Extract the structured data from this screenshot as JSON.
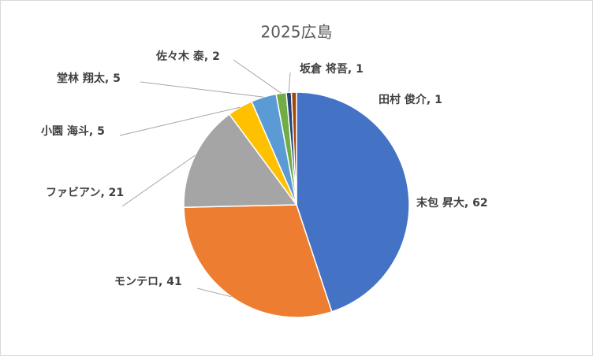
{
  "chart_data": {
    "type": "pie",
    "title": "2025広島",
    "categories": [
      "末包 昇大",
      "モンテロ",
      "ファビアン",
      "小園 海斗",
      "堂林 翔太",
      "佐々木 泰",
      "坂倉 将吾",
      "田村 俊介"
    ],
    "values": [
      62,
      41,
      21,
      5,
      5,
      2,
      1,
      1
    ],
    "colors": [
      "#4472c4",
      "#ed7d31",
      "#a5a5a5",
      "#ffc000",
      "#5b9bd5",
      "#70ad47",
      "#264478",
      "#9e480e"
    ],
    "data_label_separator": ", "
  }
}
